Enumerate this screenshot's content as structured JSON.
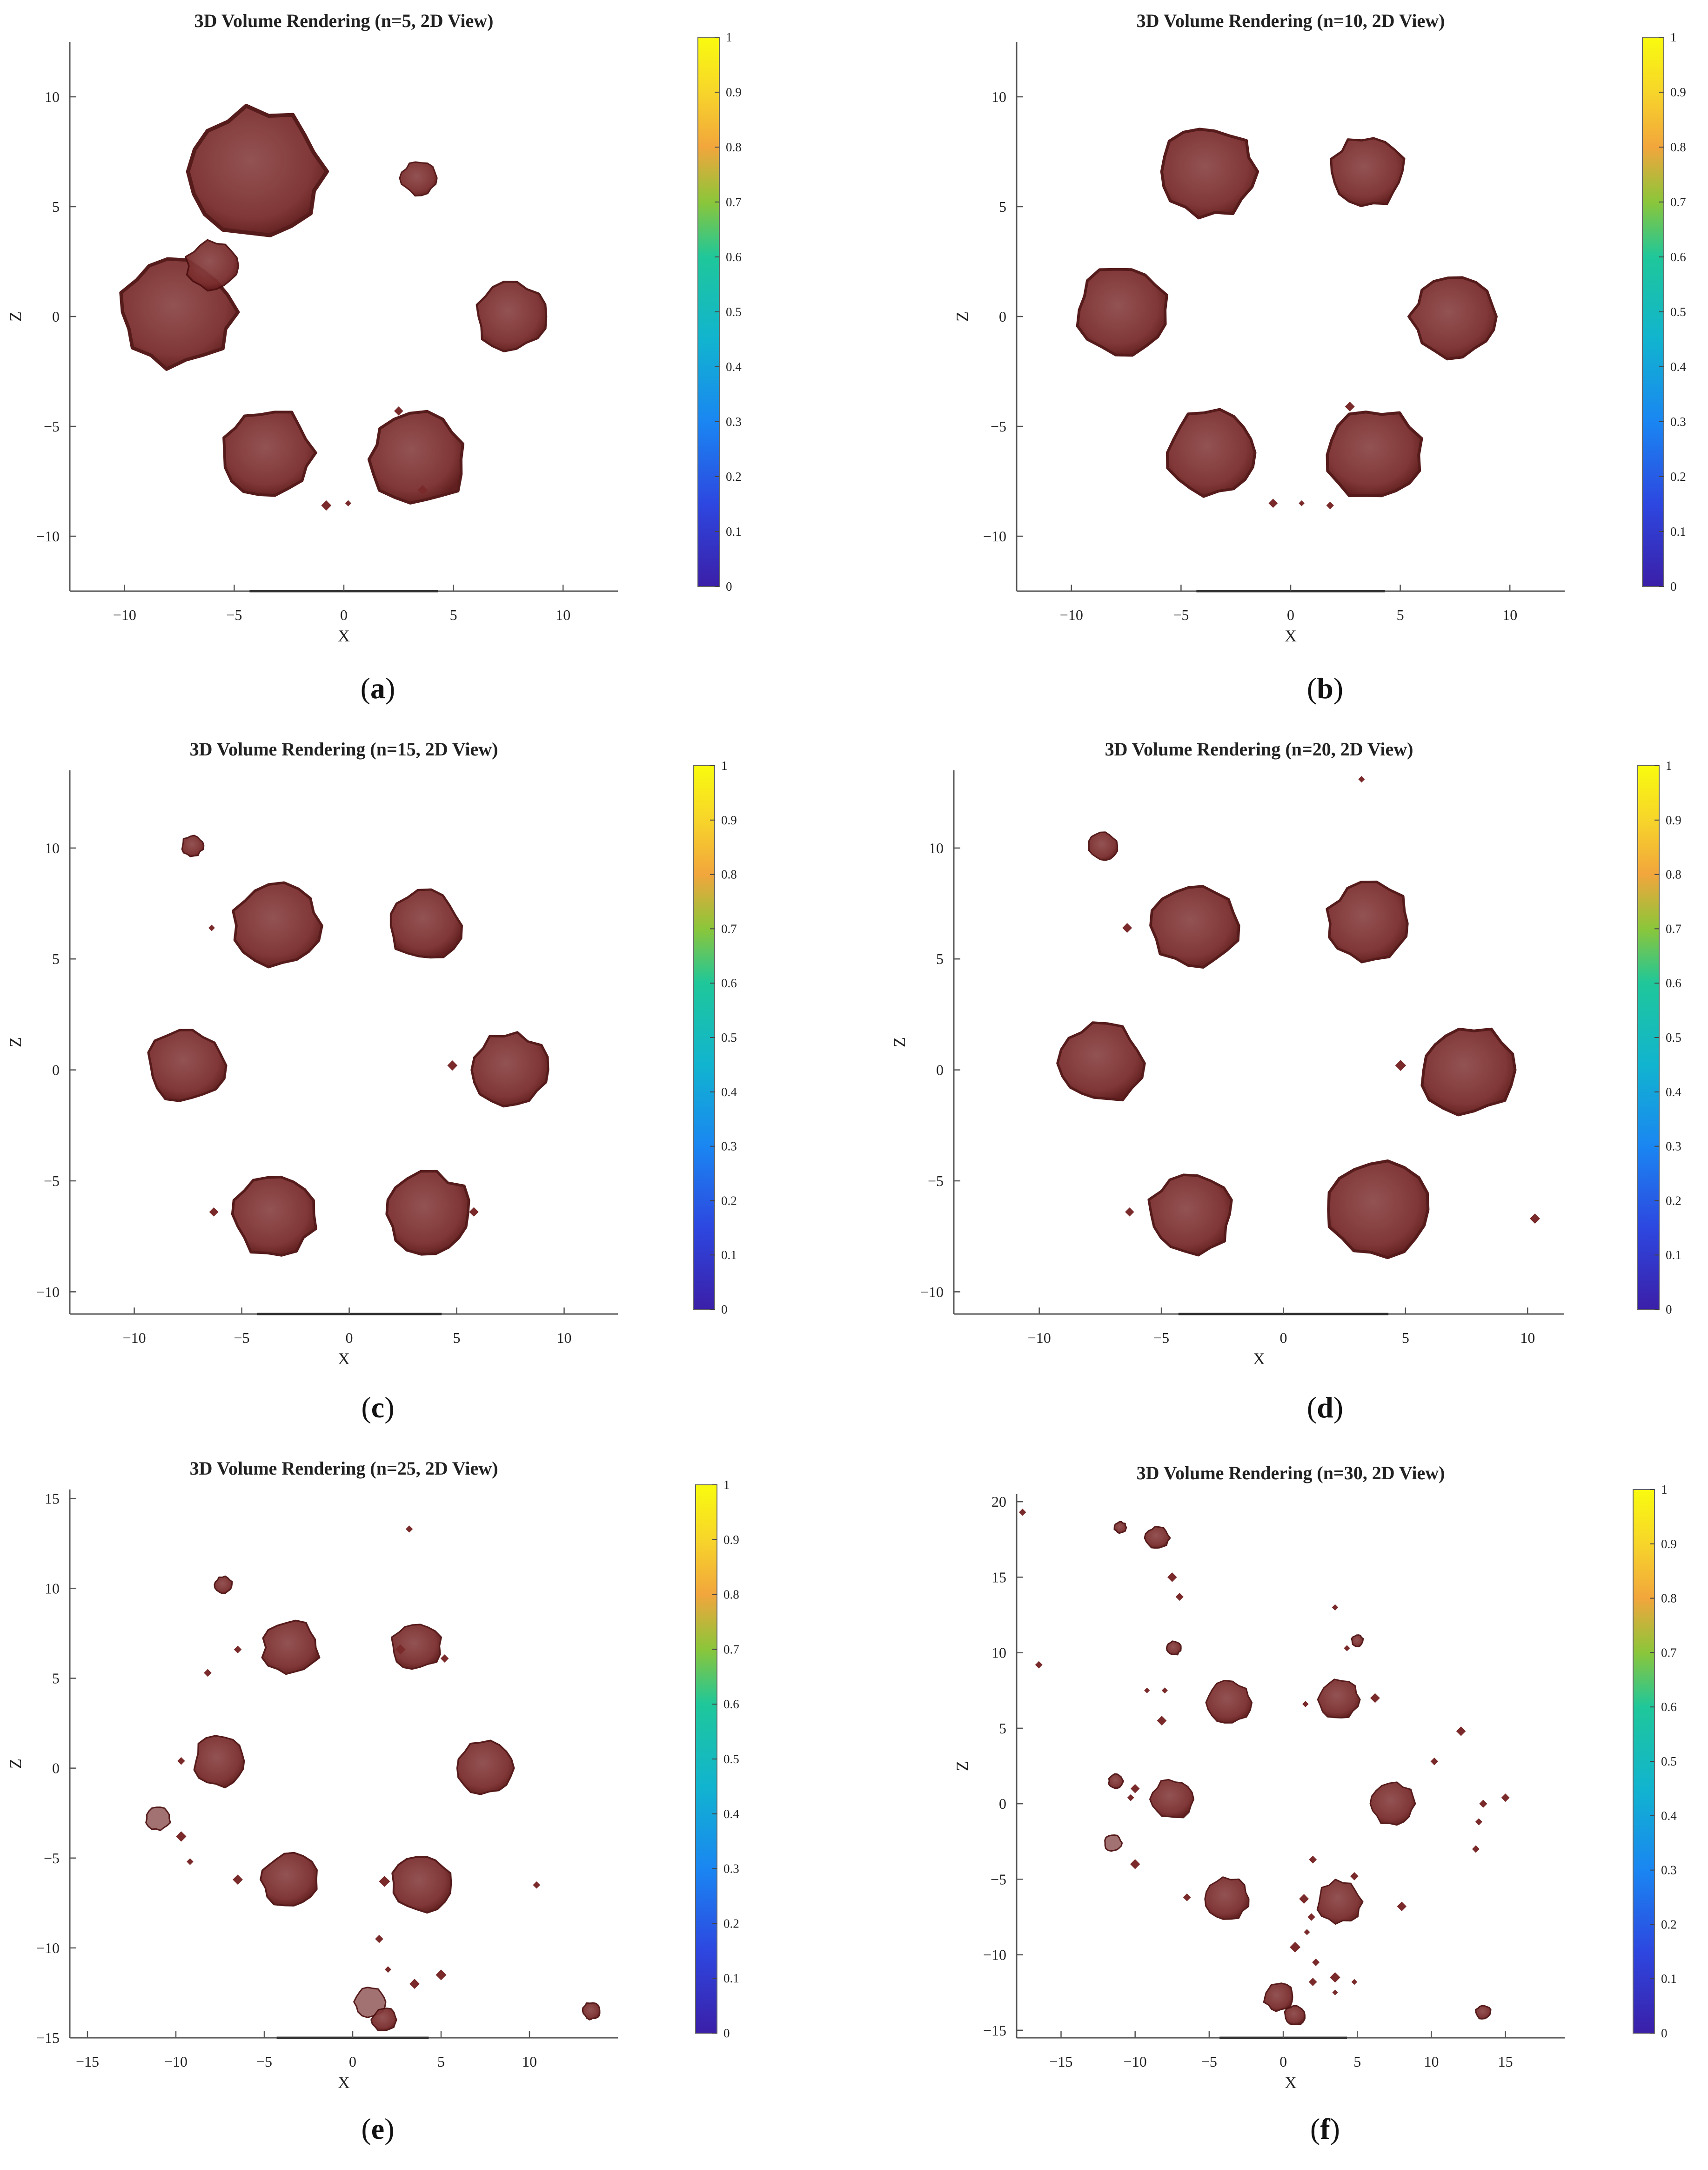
{
  "figure": {
    "colors": {
      "blob": "#7a2a2a",
      "blob_edge": "#4d0f0f",
      "blob_light": "#9e6b6b",
      "axis": "#555555"
    },
    "panels": [
      {
        "letter": "a",
        "title": "3D Volume Rendering (n=5, 2D View)",
        "xlabel": "X",
        "ylabel": "Z",
        "xlim": [
          -12.5,
          12.5
        ],
        "ylim": [
          -12.5,
          12.5
        ],
        "xticks": [
          -10,
          -5,
          0,
          5,
          10
        ],
        "yticks": [
          -10,
          -5,
          0,
          5,
          10
        ],
        "blobs": [
          [
            -3.9,
            6.6,
            3.0
          ],
          [
            -7.6,
            0.2,
            2.6
          ],
          [
            -6.0,
            2.3,
            1.2
          ],
          [
            -3.5,
            -6.2,
            2.1
          ],
          [
            3.4,
            -6.5,
            2.2
          ],
          [
            7.6,
            0.0,
            1.6
          ],
          [
            3.4,
            6.3,
            0.8
          ]
        ],
        "specks": [
          [
            -0.8,
            -8.6
          ],
          [
            0.2,
            -8.5
          ],
          [
            3.6,
            -7.9
          ],
          [
            2.5,
            -4.3
          ]
        ]
      },
      {
        "letter": "b",
        "title": "3D Volume Rendering (n=10, 2D View)",
        "xlabel": "X",
        "ylabel": "Z",
        "xlim": [
          -12.5,
          12.5
        ],
        "ylim": [
          -12.5,
          12.5
        ],
        "xticks": [
          -10,
          -5,
          0,
          5,
          10
        ],
        "yticks": [
          -10,
          -5,
          0,
          5,
          10
        ],
        "blobs": [
          [
            -3.8,
            6.6,
            2.2
          ],
          [
            3.5,
            6.6,
            1.7
          ],
          [
            -7.6,
            0.3,
            2.1
          ],
          [
            7.5,
            0.0,
            2.0
          ],
          [
            -3.6,
            -6.2,
            2.1
          ],
          [
            3.8,
            -6.3,
            2.2
          ]
        ],
        "specks": [
          [
            -0.8,
            -8.5
          ],
          [
            0.5,
            -8.5
          ],
          [
            1.8,
            -8.6
          ],
          [
            2.7,
            -4.1
          ]
        ]
      },
      {
        "letter": "c",
        "title": "3D Volume Rendering (n=15, 2D View)",
        "xlabel": "X",
        "ylabel": "Z",
        "xlim": [
          -13,
          12.5
        ],
        "ylim": [
          -11,
          13.5
        ],
        "xticks": [
          -10,
          -5,
          0,
          5,
          10
        ],
        "yticks": [
          -10,
          -5,
          0,
          5,
          10
        ],
        "blobs": [
          [
            -3.4,
            6.5,
            2.0
          ],
          [
            3.5,
            6.5,
            1.7
          ],
          [
            -7.6,
            0.2,
            1.8
          ],
          [
            7.5,
            0.0,
            1.8
          ],
          [
            -3.5,
            -6.5,
            2.0
          ],
          [
            3.7,
            -6.5,
            2.0
          ],
          [
            -7.3,
            10.1,
            0.5
          ]
        ],
        "specks": [
          [
            -6.4,
            6.4
          ],
          [
            4.8,
            0.2
          ],
          [
            -6.3,
            -6.4
          ],
          [
            5.8,
            -6.4
          ]
        ]
      },
      {
        "letter": "d",
        "title": "3D Volume Rendering (n=20, 2D View)",
        "xlabel": "X",
        "ylabel": "Z",
        "xlim": [
          -13.5,
          11.5
        ],
        "ylim": [
          -11,
          13.5
        ],
        "xticks": [
          -10,
          -5,
          0,
          5,
          10
        ],
        "yticks": [
          -10,
          -5,
          0,
          5,
          10
        ],
        "blobs": [
          [
            -3.6,
            6.5,
            1.8
          ],
          [
            3.5,
            6.6,
            1.7
          ],
          [
            -7.5,
            0.3,
            1.7
          ],
          [
            7.5,
            0.0,
            1.9
          ],
          [
            -3.8,
            -6.5,
            1.7
          ],
          [
            3.9,
            -6.3,
            2.0
          ],
          [
            -7.4,
            10.1,
            0.6
          ]
        ],
        "specks": [
          [
            -6.4,
            6.4
          ],
          [
            4.8,
            0.2
          ],
          [
            -6.3,
            -6.4
          ],
          [
            3.2,
            13.1
          ],
          [
            10.3,
            -6.7
          ]
        ]
      },
      {
        "letter": "e",
        "title": "3D Volume Rendering (n=25, 2D View)",
        "xlabel": "X",
        "ylabel": "Z",
        "xlim": [
          -16,
          15
        ],
        "ylim": [
          -15,
          15.5
        ],
        "xticks": [
          -15,
          -10,
          -5,
          0,
          5,
          10
        ],
        "yticks": [
          -15,
          -10,
          -5,
          0,
          5,
          10,
          15
        ],
        "blobs": [
          [
            -3.5,
            6.7,
            1.6
          ],
          [
            3.6,
            6.8,
            1.4
          ],
          [
            -7.5,
            0.4,
            1.5
          ],
          [
            7.5,
            0.0,
            1.6
          ],
          [
            -3.6,
            -6.2,
            1.6
          ],
          [
            3.9,
            -6.4,
            1.7
          ],
          [
            -7.3,
            10.2,
            0.5
          ],
          [
            -11.0,
            -2.8,
            0.7
          ],
          [
            1.0,
            -13.0,
            0.9
          ],
          [
            1.8,
            -14.0,
            0.7
          ],
          [
            13.5,
            -13.5,
            0.5
          ]
        ],
        "specks": [
          [
            -6.5,
            6.6
          ],
          [
            -8.2,
            5.3
          ],
          [
            -9.7,
            0.4
          ],
          [
            -9.7,
            -3.8
          ],
          [
            2.7,
            6.6
          ],
          [
            5.2,
            6.1
          ],
          [
            -6.5,
            -6.2
          ],
          [
            1.8,
            -6.3
          ],
          [
            1.5,
            -9.5
          ],
          [
            2.0,
            -11.2
          ],
          [
            3.5,
            -12.0
          ],
          [
            5.0,
            -11.5
          ],
          [
            10.4,
            -6.5
          ],
          [
            3.2,
            13.3
          ],
          [
            -9.2,
            -5.2
          ]
        ]
      },
      {
        "letter": "f",
        "title": "3D Volume Rendering (n=30, 2D View)",
        "xlabel": "X",
        "ylabel": "Z",
        "xlim": [
          -18,
          19
        ],
        "ylim": [
          -15.5,
          20.5
        ],
        "xticks": [
          -15,
          -10,
          -5,
          0,
          5,
          10,
          15
        ],
        "yticks": [
          -15,
          -10,
          -5,
          0,
          5,
          10,
          15,
          20
        ],
        "blobs": [
          [
            -3.7,
            6.7,
            1.5
          ],
          [
            3.7,
            6.9,
            1.4
          ],
          [
            -7.5,
            0.3,
            1.4
          ],
          [
            7.4,
            0.0,
            1.5
          ],
          [
            -3.8,
            -6.3,
            1.5
          ],
          [
            3.8,
            -6.5,
            1.5
          ],
          [
            -8.5,
            17.6,
            0.8
          ],
          [
            -11.0,
            18.3,
            0.4
          ],
          [
            -7.4,
            10.3,
            0.5
          ],
          [
            -11.3,
            1.5,
            0.5
          ],
          [
            -11.5,
            -2.6,
            0.6
          ],
          [
            -0.3,
            -12.8,
            1.0
          ],
          [
            0.8,
            -14.0,
            0.7
          ],
          [
            13.5,
            -13.8,
            0.5
          ],
          [
            5.0,
            10.8,
            0.4
          ]
        ],
        "specks": [
          [
            -17.6,
            19.3
          ],
          [
            -16.5,
            9.2
          ],
          [
            -7.5,
            15.0
          ],
          [
            -7.0,
            13.7
          ],
          [
            -9.2,
            7.5
          ],
          [
            -8.0,
            7.5
          ],
          [
            -8.2,
            5.5
          ],
          [
            -10.3,
            0.4
          ],
          [
            -10.0,
            1.0
          ],
          [
            -6.5,
            -6.2
          ],
          [
            1.5,
            6.6
          ],
          [
            3.5,
            13.0
          ],
          [
            4.3,
            10.3
          ],
          [
            6.2,
            7.0
          ],
          [
            10.2,
            2.8
          ],
          [
            12.0,
            4.8
          ],
          [
            13.5,
            0.0
          ],
          [
            13.2,
            -1.2
          ],
          [
            15.0,
            0.4
          ],
          [
            1.4,
            -6.3
          ],
          [
            1.9,
            -7.5
          ],
          [
            1.6,
            -8.5
          ],
          [
            0.8,
            -9.5
          ],
          [
            2.2,
            -10.5
          ],
          [
            3.5,
            -11.5
          ],
          [
            2.0,
            -11.8
          ],
          [
            4.8,
            -11.8
          ],
          [
            3.5,
            -12.5
          ],
          [
            8.0,
            -6.8
          ],
          [
            13.0,
            -3.0
          ],
          [
            -10.0,
            -4.0
          ],
          [
            4.8,
            -4.8
          ],
          [
            2.0,
            -3.7
          ]
        ]
      }
    ],
    "colorbar": {
      "ticks": [
        "0",
        "0.1",
        "0.2",
        "0.3",
        "0.4",
        "0.5",
        "0.6",
        "0.7",
        "0.8",
        "0.9",
        "1"
      ]
    }
  }
}
